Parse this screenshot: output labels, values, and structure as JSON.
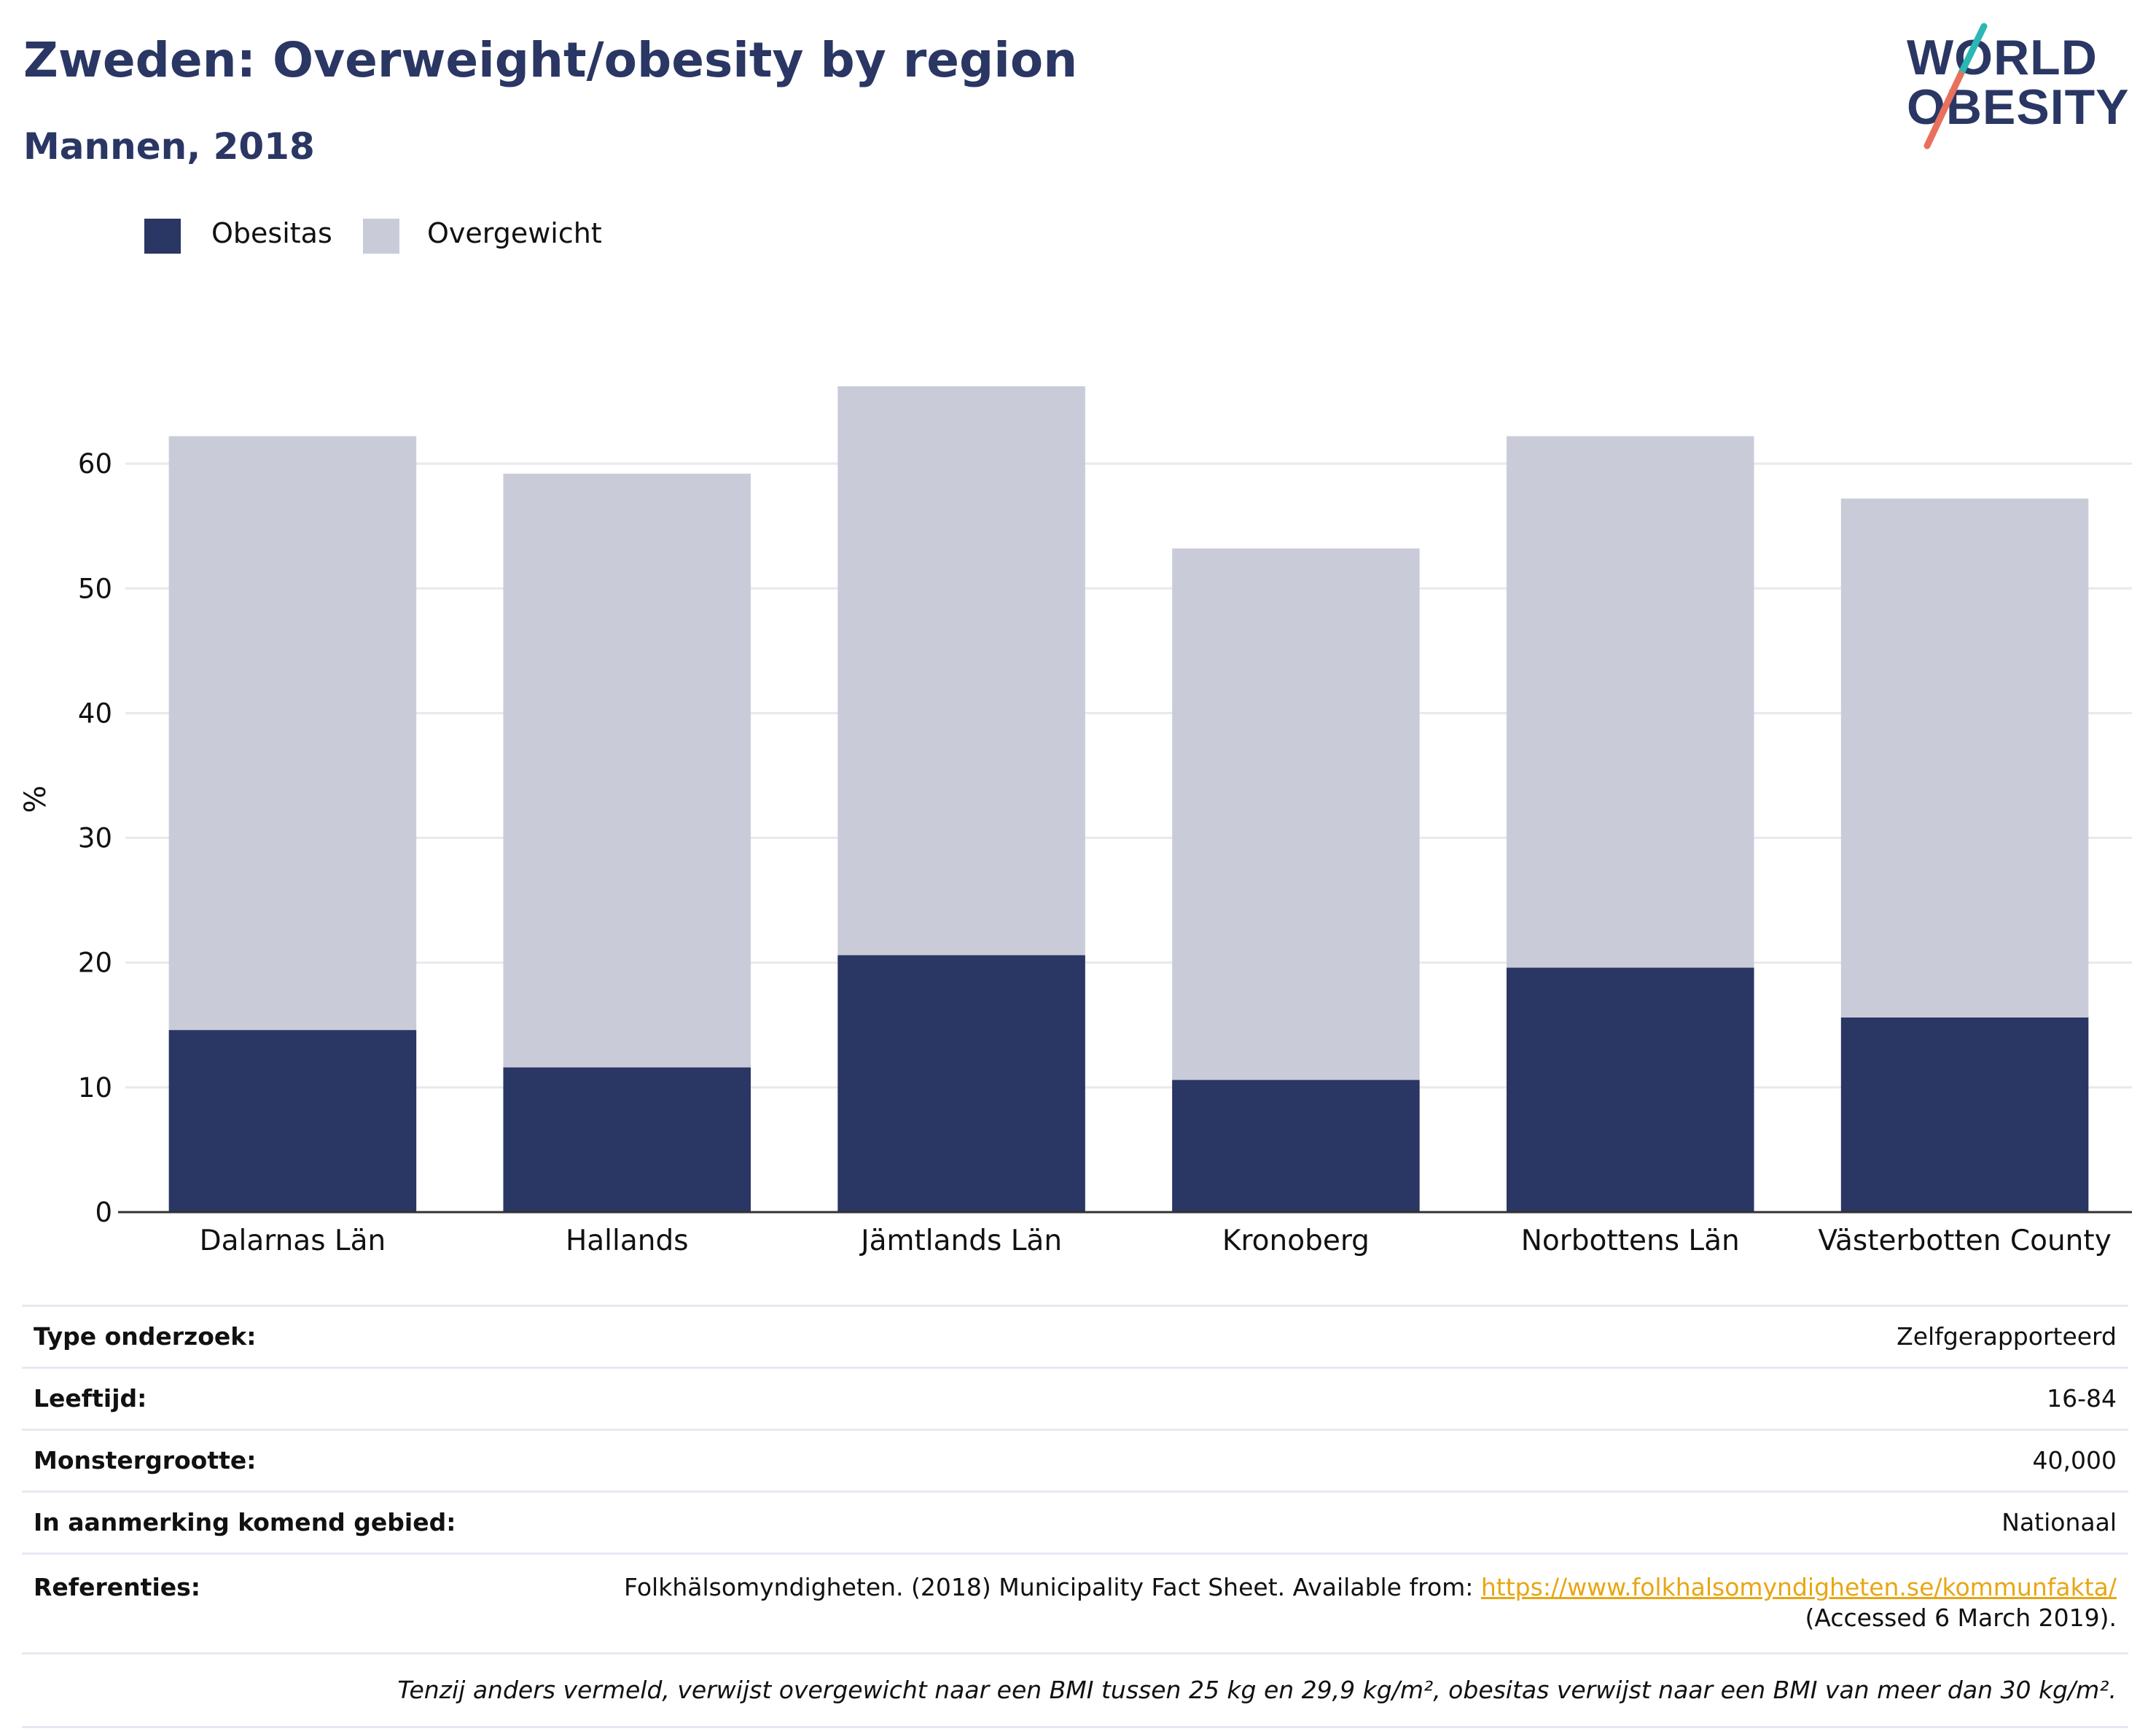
{
  "header": {
    "title": "Zweden: Overweight/obesity by region",
    "subtitle": "Mannen, 2018"
  },
  "logo": {
    "line1": "WORLD",
    "line2": "OBESITY",
    "colors": {
      "text": "#2a3663",
      "slash_top": "#2bb7b3",
      "slash_bottom": "#e8705c"
    }
  },
  "colors": {
    "obesity": "#2a3663",
    "overweight": "#c9ccd8",
    "grid": "#e8e8ee",
    "axis": "#333333"
  },
  "legend": {
    "items": [
      {
        "label": "Obesitas",
        "color": "#2a3663"
      },
      {
        "label": "Overgewicht",
        "color": "#c9ccd8"
      }
    ]
  },
  "chart_data": {
    "type": "bar",
    "stacked": true,
    "categories": [
      "Dalarnas Län",
      "Hallands",
      "Jämtlands Län",
      "Kronoberg",
      "Norbottens Län",
      "Västerbotten County"
    ],
    "series": [
      {
        "name": "Obesitas",
        "values": [
          14.6,
          11.6,
          20.6,
          10.6,
          19.6,
          15.6
        ]
      },
      {
        "name": "Overgewicht",
        "values": [
          47.6,
          47.6,
          45.6,
          42.6,
          42.6,
          41.6
        ]
      }
    ],
    "ylabel": "%",
    "xlabel": "",
    "ylim": [
      0,
      66.2
    ],
    "yticks": [
      0,
      10,
      20,
      30,
      40,
      50,
      60
    ],
    "grid": true,
    "legend_position": "top-left"
  },
  "info": {
    "rows": [
      {
        "key": "Type onderzoek:",
        "value": "Zelfgerapporteerd"
      },
      {
        "key": "Leeftijd:",
        "value": "16-84"
      },
      {
        "key": "Monstergrootte:",
        "value": "40,000"
      },
      {
        "key": "In aanmerking komend gebied:",
        "value": "Nationaal"
      }
    ],
    "references": {
      "key": "Referenties:",
      "text_before": "Folkhälsomyndigheten. (2018) Municipality Fact Sheet. Available from: ",
      "link": "https://www.folkhalsomyndigheten.se/kommunfakta/",
      "text_after": " (Accessed 6 March 2019)."
    },
    "note": "Tenzij anders vermeld, verwijst overgewicht naar een BMI tussen 25 kg en 29,9 kg/m², obesitas verwijst naar een BMI van meer dan 30 kg/m²."
  }
}
